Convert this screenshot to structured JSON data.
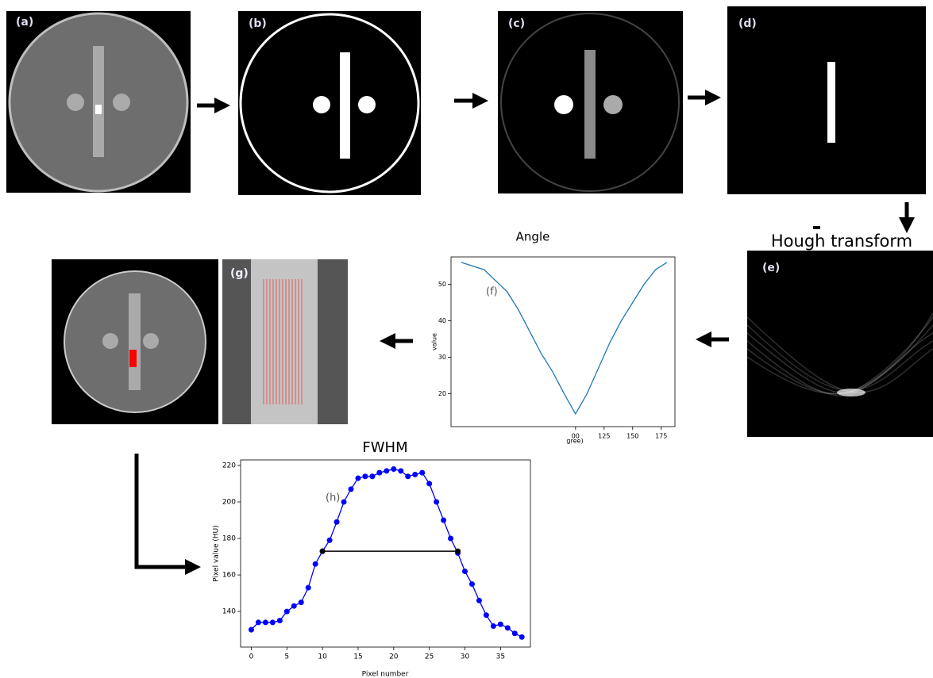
{
  "panels": {
    "a": "(a)",
    "b": "(b)",
    "c": "(c)",
    "d": "(d)",
    "e": "(e)",
    "g": "(g)"
  },
  "hough_label": "Hough transform",
  "chart_data": [
    {
      "type": "line",
      "title": "Angle",
      "ylabel": "value",
      "xlabel": "gree)",
      "annotation": "(f)",
      "x": [
        0,
        10,
        20,
        30,
        40,
        50,
        60,
        70,
        80,
        90,
        100,
        110,
        120,
        130,
        140,
        150,
        160,
        170,
        180
      ],
      "series": [
        {
          "color": "#1f77b4",
          "values": [
            56,
            55,
            54,
            51,
            48,
            43,
            37,
            31,
            26,
            20,
            14.5,
            20,
            27,
            34,
            40,
            45,
            50,
            54,
            56
          ]
        }
      ],
      "xlim": [
        -9,
        187
      ],
      "ylim": [
        11,
        57.5
      ],
      "xticks": [
        {
          "value": 100,
          "label": "00"
        },
        125,
        150,
        175
      ],
      "yticks": [
        20,
        30,
        40,
        50
      ],
      "markers": false
    },
    {
      "type": "line",
      "title": "FWHM",
      "ylabel": "Pixel value (HU)",
      "xlabel": "Pixel number",
      "annotation": "(h)",
      "x": [
        0,
        1,
        2,
        3,
        4,
        5,
        6,
        7,
        8,
        9,
        10,
        11,
        12,
        13,
        14,
        15,
        16,
        17,
        18,
        19,
        20,
        21,
        22,
        23,
        24,
        25,
        26,
        27,
        28,
        29,
        30,
        31,
        32,
        33,
        34,
        35,
        36,
        37,
        38
      ],
      "series": [
        {
          "color": "#0000ff",
          "values": [
            130,
            134,
            134,
            134,
            135,
            140,
            143,
            145,
            153,
            166,
            173,
            179,
            189,
            200,
            207,
            213,
            214,
            214,
            216,
            217,
            218,
            217,
            214,
            215,
            216,
            210,
            200,
            190,
            180,
            172,
            162,
            155,
            146,
            138,
            132,
            133,
            131,
            128,
            126
          ]
        }
      ],
      "fwhm": {
        "x": [
          10,
          29
        ],
        "y": [
          173,
          173
        ],
        "color": "#000000"
      },
      "xlim": [
        -1.5,
        39.2
      ],
      "ylim": [
        120.5,
        223
      ],
      "xticks": [
        0,
        5,
        10,
        15,
        20,
        25,
        30,
        35
      ],
      "yticks": [
        140,
        160,
        180,
        200,
        220
      ],
      "markers": true
    }
  ]
}
